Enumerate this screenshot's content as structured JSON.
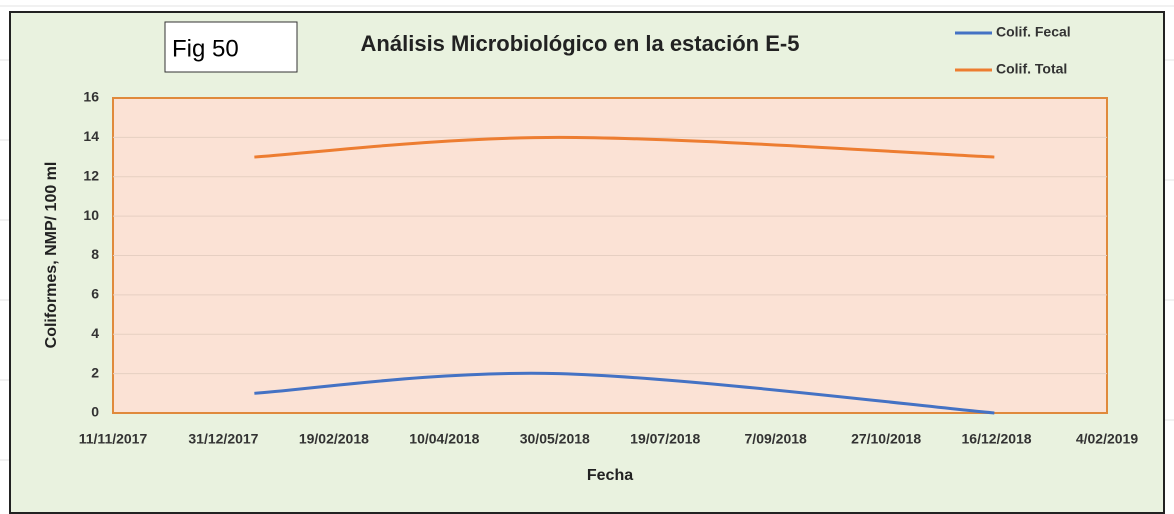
{
  "chart_data": {
    "type": "line",
    "figure_label": "Fig 50",
    "title": "Análisis Microbiológico en la estación E-5",
    "xlabel": "Fecha",
    "ylabel": "Coliformes, NMP/ 100 ml",
    "x": [
      "14/01/2018",
      "1/06/2018",
      "15/12/2018"
    ],
    "series": [
      {
        "name": "Colif. Fecal",
        "color": "#4472c4",
        "values": [
          1,
          2,
          0
        ]
      },
      {
        "name": "Colif. Total",
        "color": "#ed7d31",
        "values": [
          13,
          14,
          13
        ]
      }
    ],
    "xlim": [
      "11/11/2017",
      "4/02/2019"
    ],
    "xticks": [
      "11/11/2017",
      "31/12/2017",
      "19/02/2018",
      "10/04/2018",
      "30/05/2018",
      "19/07/2018",
      "7/09/2018",
      "27/10/2018",
      "16/12/2018",
      "4/02/2019"
    ],
    "ylim": [
      0,
      16
    ],
    "yticks": [
      0,
      2,
      4,
      6,
      8,
      10,
      12,
      14,
      16
    ],
    "grid": true,
    "smooth": true,
    "legend": "top-right"
  }
}
